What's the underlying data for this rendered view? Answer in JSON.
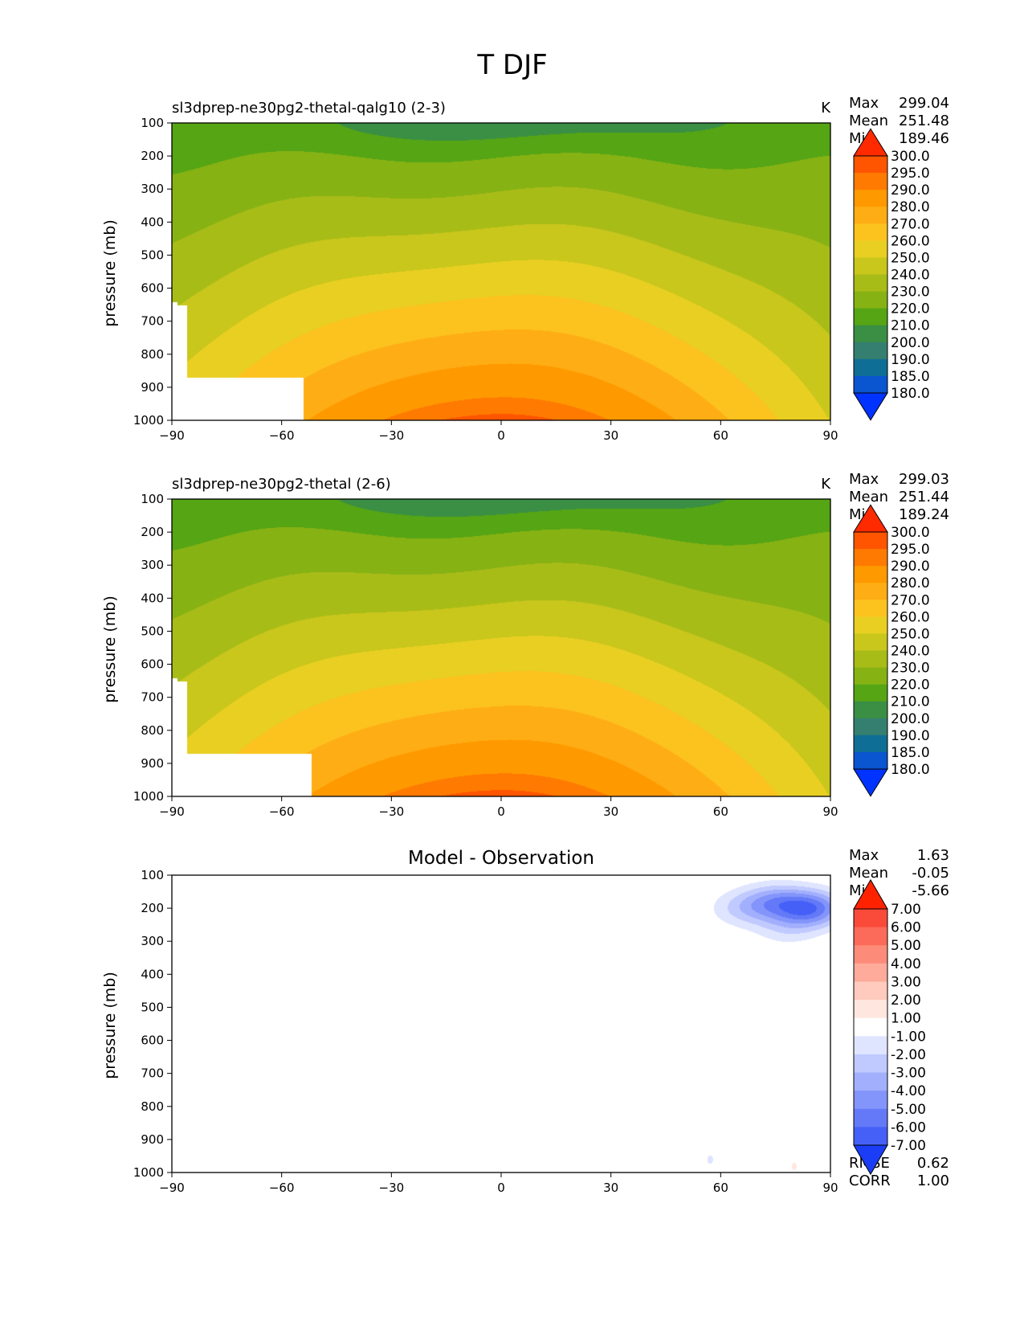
{
  "figure": {
    "title": "T DJF"
  },
  "chart_data": [
    {
      "type": "heatmap",
      "title": "sl3dprep-ne30pg2-thetal-qalg10 (2-3)",
      "units": "K",
      "ylabel": "pressure (mb)",
      "xlabel": "",
      "x_ticks": [
        "−90",
        "−60",
        "−30",
        "0",
        "30",
        "60",
        "90"
      ],
      "y_ticks": [
        "100",
        "200",
        "300",
        "400",
        "500",
        "600",
        "700",
        "800",
        "900",
        "1000"
      ],
      "xlim": [
        -90,
        90
      ],
      "ylim": [
        1000,
        100
      ],
      "stats": [
        {
          "label": "Max",
          "value": "299.04"
        },
        {
          "label": "Mean",
          "value": "251.48"
        },
        {
          "label": "Min",
          "value": "189.46"
        }
      ],
      "colorbar": {
        "levels": [
          "300.0",
          "295.0",
          "290.0",
          "280.0",
          "270.0",
          "260.0",
          "250.0",
          "240.0",
          "230.0",
          "220.0",
          "210.0",
          "200.0",
          "190.0",
          "185.0",
          "180.0"
        ],
        "colors": [
          "#ff2a00",
          "#ff5500",
          "#ff7a00",
          "#ff9900",
          "#ffad14",
          "#fcc21e",
          "#e8cf22",
          "#c9c61c",
          "#a8bc18",
          "#86b214",
          "#55a514",
          "#3a8f45",
          "#347f70",
          "#0f6e96",
          "#0a55d0",
          "#0033ff"
        ]
      },
      "field": {
        "base_temperature": 190,
        "surface_temperature_equator": 300,
        "masked_region": {
          "lat_range": [
            -90,
            -54
          ],
          "pressure_above": 870
        }
      }
    },
    {
      "type": "heatmap",
      "title": "sl3dprep-ne30pg2-thetal (2-6)",
      "units": "K",
      "ylabel": "pressure (mb)",
      "xlabel": "",
      "x_ticks": [
        "−90",
        "−60",
        "−30",
        "0",
        "30",
        "60",
        "90"
      ],
      "y_ticks": [
        "100",
        "200",
        "300",
        "400",
        "500",
        "600",
        "700",
        "800",
        "900",
        "1000"
      ],
      "xlim": [
        -90,
        90
      ],
      "ylim": [
        1000,
        100
      ],
      "stats": [
        {
          "label": "Max",
          "value": "299.03"
        },
        {
          "label": "Mean",
          "value": "251.44"
        },
        {
          "label": "Min",
          "value": "189.24"
        }
      ],
      "colorbar": {
        "levels": [
          "300.0",
          "295.0",
          "290.0",
          "280.0",
          "270.0",
          "260.0",
          "250.0",
          "240.0",
          "230.0",
          "220.0",
          "210.0",
          "200.0",
          "190.0",
          "185.0",
          "180.0"
        ],
        "colors": [
          "#ff2a00",
          "#ff5500",
          "#ff7a00",
          "#ff9900",
          "#ffad14",
          "#fcc21e",
          "#e8cf22",
          "#c9c61c",
          "#a8bc18",
          "#86b214",
          "#55a514",
          "#3a8f45",
          "#347f70",
          "#0f6e96",
          "#0a55d0",
          "#0033ff"
        ]
      },
      "field": {
        "base_temperature": 190,
        "surface_temperature_equator": 300,
        "masked_region": {
          "lat_range": [
            -90,
            -52
          ],
          "pressure_above": 870
        }
      }
    },
    {
      "type": "heatmap",
      "title": "Model - Observation",
      "units": "",
      "ylabel": "pressure (mb)",
      "xlabel": "",
      "x_ticks": [
        "−90",
        "−60",
        "−30",
        "0",
        "30",
        "60",
        "90"
      ],
      "y_ticks": [
        "100",
        "200",
        "300",
        "400",
        "500",
        "600",
        "700",
        "800",
        "900",
        "1000"
      ],
      "xlim": [
        -90,
        90
      ],
      "ylim": [
        1000,
        100
      ],
      "stats": [
        {
          "label": "Max",
          "value": "1.63"
        },
        {
          "label": "Mean",
          "value": "-0.05"
        },
        {
          "label": "Min",
          "value": "-5.66"
        }
      ],
      "extra_stats": [
        {
          "label": "RMSE",
          "value": "0.62"
        },
        {
          "label": "CORR",
          "value": "1.00"
        }
      ],
      "colorbar": {
        "levels": [
          "7.00",
          "6.00",
          "5.00",
          "4.00",
          "3.00",
          "2.00",
          "1.00",
          "-1.00",
          "-2.00",
          "-3.00",
          "-4.00",
          "-5.00",
          "-6.00",
          "-7.00"
        ],
        "colors": [
          "#ff2200",
          "#fa4a3a",
          "#fc6b5a",
          "#fd8b7a",
          "#feab9c",
          "#ffcbbe",
          "#ffe6df",
          "#ffffff",
          "#e0e5ff",
          "#c1caff",
          "#a2affd",
          "#8394fa",
          "#6479f8",
          "#4560f6",
          "#1a3df5"
        ]
      },
      "anomalies": [
        {
          "lat": 85,
          "p": 200,
          "value": -5.2
        },
        {
          "lat": 75,
          "p": 180,
          "value": -3.5
        },
        {
          "lat": 66,
          "p": 200,
          "value": -2.0
        },
        {
          "lat": 78,
          "p": 260,
          "value": -1.5
        },
        {
          "lat": 57,
          "p": 960,
          "value": -1.3
        },
        {
          "lat": 80,
          "p": 980,
          "value": 1.2
        }
      ]
    }
  ]
}
